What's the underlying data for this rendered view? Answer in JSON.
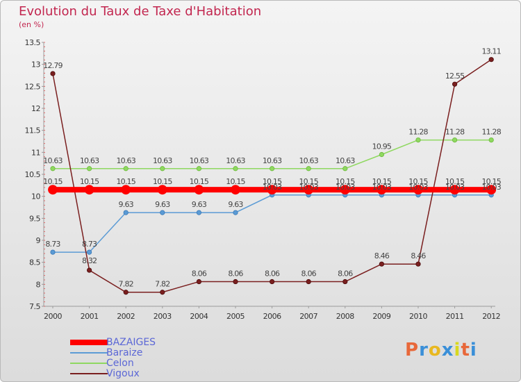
{
  "title": "Evolution du Taux de Taxe d'Habitation",
  "unit": "(en %)",
  "logo": {
    "text": "Proxiti",
    "colors": [
      "#e8683a",
      "#3a8fd8",
      "#e8b820",
      "#3a8fd8",
      "#d8d820",
      "#e8683a",
      "#3a8fd8"
    ]
  },
  "chart_data": {
    "type": "line",
    "x": [
      "2000",
      "2001",
      "2002",
      "2003",
      "2004",
      "2005",
      "2006",
      "2007",
      "2008",
      "2009",
      "2010",
      "2011",
      "2012"
    ],
    "ylim": [
      7.5,
      13.5
    ],
    "yticks": [
      "7.5",
      "8",
      "8.5",
      "9",
      "9.5",
      "10",
      "10.5",
      "11",
      "11.5",
      "12",
      "12.5",
      "13",
      "13.5"
    ],
    "grid": false,
    "legend_position": "bottom-left",
    "series": [
      {
        "name": "BAZAIGES",
        "color": "#ff0000",
        "width": 8,
        "values": [
          10.15,
          10.15,
          10.15,
          10.15,
          10.15,
          10.15,
          10.15,
          10.15,
          10.15,
          10.15,
          10.15,
          10.15,
          10.15
        ],
        "labels": [
          "10.15",
          "10.15",
          "10.15",
          "10.15",
          "10.15",
          "10.15",
          "10.15",
          "10.15",
          "10.15",
          "10.15",
          "10.15",
          "10.15",
          "10.15"
        ]
      },
      {
        "name": "Baraize",
        "color": "#5b9bd5",
        "width": 1.5,
        "values": [
          8.73,
          8.73,
          9.63,
          9.63,
          9.63,
          9.63,
          10.03,
          10.03,
          10.03,
          10.03,
          10.03,
          10.03,
          10.03
        ],
        "labels": [
          "8.73",
          "8.73",
          "9.63",
          "9.63",
          "9.63",
          "9.63",
          "10.03",
          "10.03",
          "10.03",
          "10.03",
          "10.03",
          "10.03",
          "10.03"
        ]
      },
      {
        "name": "Celon",
        "color": "#8fd860",
        "width": 1.5,
        "values": [
          10.63,
          10.63,
          10.63,
          10.63,
          10.63,
          10.63,
          10.63,
          10.63,
          10.63,
          10.95,
          11.28,
          11.28,
          11.28
        ],
        "labels": [
          "10.63",
          "10.63",
          "10.63",
          "10.63",
          "10.63",
          "10.63",
          "10.63",
          "10.63",
          "10.63",
          "10.95",
          "11.28",
          "11.28",
          "11.28"
        ]
      },
      {
        "name": "Vigoux",
        "color": "#7a1f1f",
        "width": 1.5,
        "values": [
          12.79,
          8.32,
          7.82,
          7.82,
          8.06,
          8.06,
          8.06,
          8.06,
          8.06,
          8.46,
          8.46,
          12.55,
          13.11
        ],
        "labels": [
          "12.79",
          "8.32",
          "7.82",
          "7.82",
          "8.06",
          "8.06",
          "8.06",
          "8.06",
          "8.06",
          "8.46",
          "8.46",
          "12.55",
          "13.11"
        ]
      }
    ]
  }
}
